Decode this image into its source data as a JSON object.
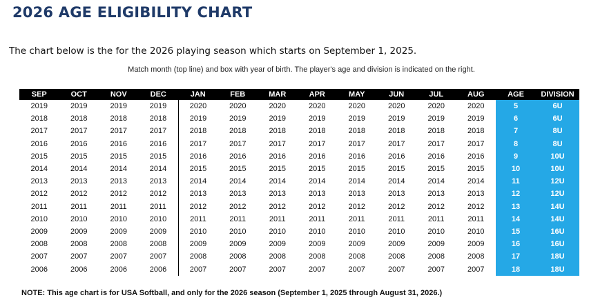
{
  "title": "2026 AGE ELIGIBILITY CHART",
  "intro": "The chart below is the for the 2026 playing season which starts on September 1, 2025.",
  "instructions": "Match month (top line) and box with year of birth. The player's age and division is indicated on the right.",
  "headers": [
    "SEP",
    "OCT",
    "NOV",
    "DEC",
    "JAN",
    "FEB",
    "MAR",
    "APR",
    "MAY",
    "JUN",
    "JUL",
    "AUG",
    "AGE",
    "DIVISION"
  ],
  "rows": [
    [
      "2019",
      "2019",
      "2019",
      "2019",
      "2020",
      "2020",
      "2020",
      "2020",
      "2020",
      "2020",
      "2020",
      "2020",
      "5",
      "6U"
    ],
    [
      "2018",
      "2018",
      "2018",
      "2018",
      "2019",
      "2019",
      "2019",
      "2019",
      "2019",
      "2019",
      "2019",
      "2019",
      "6",
      "6U"
    ],
    [
      "2017",
      "2017",
      "2017",
      "2017",
      "2018",
      "2018",
      "2018",
      "2018",
      "2018",
      "2018",
      "2018",
      "2018",
      "7",
      "8U"
    ],
    [
      "2016",
      "2016",
      "2016",
      "2016",
      "2017",
      "2017",
      "2017",
      "2017",
      "2017",
      "2017",
      "2017",
      "2017",
      "8",
      "8U"
    ],
    [
      "2015",
      "2015",
      "2015",
      "2015",
      "2016",
      "2016",
      "2016",
      "2016",
      "2016",
      "2016",
      "2016",
      "2016",
      "9",
      "10U"
    ],
    [
      "2014",
      "2014",
      "2014",
      "2014",
      "2015",
      "2015",
      "2015",
      "2015",
      "2015",
      "2015",
      "2015",
      "2015",
      "10",
      "10U"
    ],
    [
      "2013",
      "2013",
      "2013",
      "2013",
      "2014",
      "2014",
      "2014",
      "2014",
      "2014",
      "2014",
      "2014",
      "2014",
      "11",
      "12U"
    ],
    [
      "2012",
      "2012",
      "2012",
      "2012",
      "2013",
      "2013",
      "2013",
      "2013",
      "2013",
      "2013",
      "2013",
      "2013",
      "12",
      "12U"
    ],
    [
      "2011",
      "2011",
      "2011",
      "2011",
      "2012",
      "2012",
      "2012",
      "2012",
      "2012",
      "2012",
      "2012",
      "2012",
      "13",
      "14U"
    ],
    [
      "2010",
      "2010",
      "2010",
      "2010",
      "2011",
      "2011",
      "2011",
      "2011",
      "2011",
      "2011",
      "2011",
      "2011",
      "14",
      "14U"
    ],
    [
      "2009",
      "2009",
      "2009",
      "2009",
      "2010",
      "2010",
      "2010",
      "2010",
      "2010",
      "2010",
      "2010",
      "2010",
      "15",
      "16U"
    ],
    [
      "2008",
      "2008",
      "2008",
      "2008",
      "2009",
      "2009",
      "2009",
      "2009",
      "2009",
      "2009",
      "2009",
      "2009",
      "16",
      "16U"
    ],
    [
      "2007",
      "2007",
      "2007",
      "2007",
      "2008",
      "2008",
      "2008",
      "2008",
      "2008",
      "2008",
      "2008",
      "2008",
      "17",
      "18U"
    ],
    [
      "2006",
      "2006",
      "2006",
      "2006",
      "2007",
      "2007",
      "2007",
      "2007",
      "2007",
      "2007",
      "2007",
      "2007",
      "18",
      "18U"
    ]
  ],
  "note": "NOTE: This age chart is for USA Softball, and only for the 2026 season (September 1, 2025 through August 31, 2026.)",
  "colors": {
    "title": "#1f3a68",
    "highlight": "#25a8e6",
    "header_bg": "#000000"
  }
}
